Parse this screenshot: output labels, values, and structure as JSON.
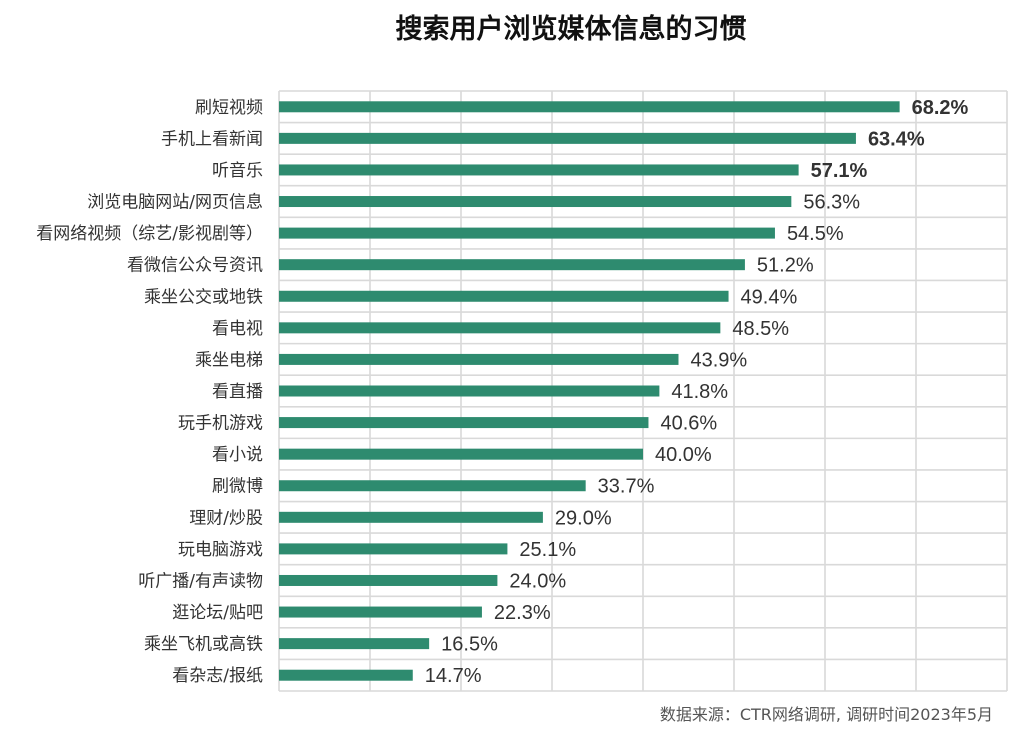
{
  "chart_data": {
    "type": "bar",
    "orientation": "horizontal",
    "title": "搜索用户浏览媒体信息的习惯",
    "source": "数据来源：CTR网络调研, 调研时间2023年5月",
    "xlim": [
      0,
      80
    ],
    "grid": true,
    "bar_color": "#2e8b6f",
    "bold_top_n": 3,
    "categories": [
      "刷短视频",
      "手机上看新闻",
      "听音乐",
      "浏览电脑网站/网页信息",
      "看网络视频（综艺/影视剧等）",
      "看微信公众号资讯",
      "乘坐公交或地铁",
      "看电视",
      "乘坐电梯",
      "看直播",
      "玩手机游戏",
      "看小说",
      "刷微博",
      "理财/炒股",
      "玩电脑游戏",
      "听广播/有声读物",
      "逛论坛/贴吧",
      "乘坐飞机或高铁",
      "看杂志/报纸"
    ],
    "values": [
      68.2,
      63.4,
      57.1,
      56.3,
      54.5,
      51.2,
      49.4,
      48.5,
      43.9,
      41.8,
      40.6,
      40.0,
      33.7,
      29.0,
      25.1,
      24.0,
      22.3,
      16.5,
      14.7
    ],
    "value_labels": [
      "68.2%",
      "63.4%",
      "57.1%",
      "56.3%",
      "54.5%",
      "51.2%",
      "49.4%",
      "48.5%",
      "43.9%",
      "41.8%",
      "40.6%",
      "40.0%",
      "33.7%",
      "29.0%",
      "25.1%",
      "24.0%",
      "22.3%",
      "16.5%",
      "14.7%"
    ]
  }
}
